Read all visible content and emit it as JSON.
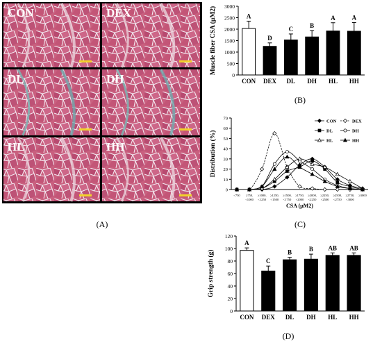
{
  "panels": {
    "A": {
      "label": "(A)",
      "micrographs": [
        "CON",
        "DEX",
        "DL",
        "DH",
        "HL",
        "HH"
      ]
    },
    "B": {
      "label": "(B)",
      "chart_data": {
        "type": "bar",
        "ylabel": "Muscle fiber CSA (μM2)",
        "categories": [
          "CON",
          "DEX",
          "DL",
          "DH",
          "HL",
          "HH"
        ],
        "values": [
          2030,
          1250,
          1530,
          1660,
          1920,
          1910
        ],
        "errors": [
          320,
          150,
          260,
          280,
          360,
          380
        ],
        "significance": [
          "A",
          "D",
          "C",
          "B",
          "A",
          "A"
        ],
        "ylim": [
          0,
          3000
        ],
        "yticks": [
          0,
          500,
          1000,
          1500,
          2000,
          2500,
          3000
        ],
        "fills": [
          "#ffffff",
          "#000000",
          "#000000",
          "#000000",
          "#000000",
          "#000000"
        ]
      }
    },
    "C": {
      "label": "(C)",
      "chart_data": {
        "type": "line",
        "ylabel": "Distribution (%)",
        "xlabel": "CSA (μM2)",
        "ylim": [
          0,
          70
        ],
        "yticks": [
          0,
          10,
          20,
          30,
          40,
          50,
          60,
          70
        ],
        "xticks_top": [
          "<750",
          "≥750,",
          "≥1000,",
          "≥1250,",
          "≥1500,",
          "≥1750,",
          "≥2000,",
          "≥2250,",
          "≥2500,",
          "≥2750,",
          "≥3000"
        ],
        "xticks_bottom": [
          "",
          "<1000",
          "<1250",
          "<1500",
          "<1750",
          "<2000",
          "<2250",
          "<2500",
          "<2750",
          "<3000",
          ""
        ],
        "series": [
          {
            "name": "CON",
            "marker": "filled-diamond",
            "dash": false,
            "values": [
              0,
              0,
              0,
              3,
              12,
              24,
              30,
              22,
              10,
              4,
              1
            ]
          },
          {
            "name": "DEX",
            "marker": "open-diamond",
            "dash": true,
            "values": [
              0,
              0,
              20,
              55,
              22,
              3,
              1,
              0,
              0,
              0,
              0
            ]
          },
          {
            "name": "DL",
            "marker": "filled-square",
            "dash": false,
            "values": [
              0,
              0,
              1,
              8,
              18,
              22,
              28,
              20,
              7,
              3,
              0
            ]
          },
          {
            "name": "DH",
            "marker": "open-circle",
            "dash": false,
            "values": [
              0,
              0,
              3,
              25,
              37,
              28,
              20,
              10,
              4,
              1,
              0
            ]
          },
          {
            "name": "HL",
            "marker": "open-triangle",
            "dash": false,
            "values": [
              0,
              0,
              1,
              10,
              22,
              30,
              25,
              22,
              15,
              8,
              1
            ]
          },
          {
            "name": "HH",
            "marker": "filled-triangle",
            "dash": false,
            "values": [
              0,
              0,
              3,
              20,
              32,
              22,
              15,
              8,
              3,
              1,
              0
            ]
          }
        ]
      }
    },
    "D": {
      "label": "(D)",
      "chart_data": {
        "type": "bar",
        "ylabel": "Grip strength (g)",
        "categories": [
          "CON",
          "DEX",
          "DL",
          "DH",
          "HL",
          "HH"
        ],
        "values": [
          97,
          64,
          82,
          83,
          89,
          89
        ],
        "errors": [
          4,
          8,
          4,
          8,
          4,
          4
        ],
        "significance": [
          "A",
          "C",
          "B",
          "B",
          "AB",
          "AB"
        ],
        "ylim": [
          0,
          120
        ],
        "yticks": [
          0,
          20,
          40,
          60,
          80,
          100,
          120
        ],
        "fills": [
          "#ffffff",
          "#000000",
          "#000000",
          "#000000",
          "#000000",
          "#000000"
        ]
      }
    }
  }
}
